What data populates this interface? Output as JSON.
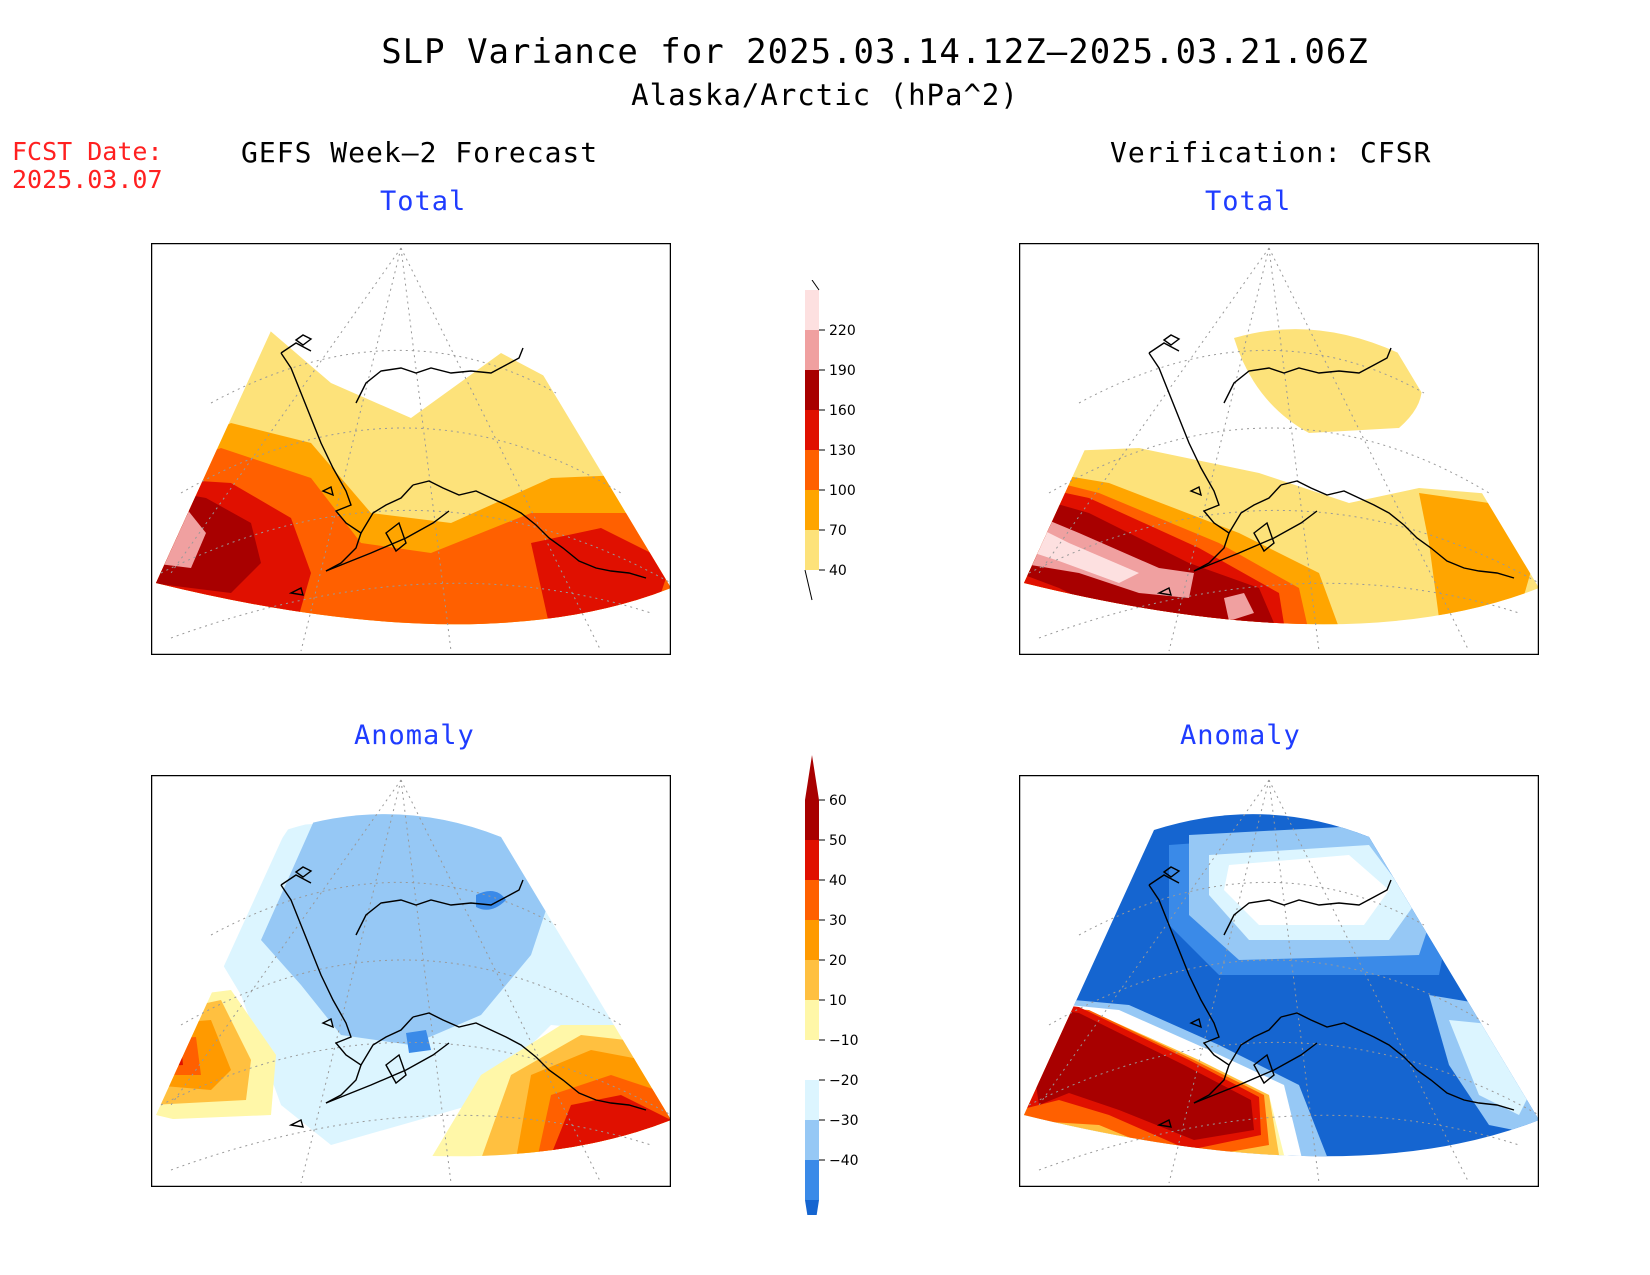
{
  "title": "SLP Variance for 2025.03.14.12Z–2025.03.21.06Z",
  "subtitle": "Alaska/Arctic (hPa^2)",
  "fcst_date_label": "FCST Date:",
  "fcst_date_value": "2025.03.07",
  "left_header": "GEFS Week–2 Forecast",
  "right_header": "Verification: CFSR",
  "panels": {
    "forecast_total_title": "Total",
    "verification_total_title": "Total",
    "forecast_anomaly_title": "Anomaly",
    "verification_anomaly_title": "Anomaly"
  },
  "colors": {
    "total": [
      "#fde27a",
      "#ffa500",
      "#ff6000",
      "#e01000",
      "#a80000",
      "#f0a0a0",
      "#fde0e0"
    ],
    "anomaly_neg": [
      "#1565d0",
      "#3a8ae8",
      "#96c8f5",
      "#dcf5ff"
    ],
    "anomaly_pos": [
      "#fff7a8",
      "#ffc040",
      "#ff9a00",
      "#ff6000",
      "#e01000",
      "#a80000"
    ]
  },
  "total_colorbar": {
    "labels": [
      "40",
      "70",
      "100",
      "130",
      "160",
      "190",
      "220"
    ]
  },
  "anomaly_colorbar": {
    "labels": [
      "−40",
      "−30",
      "−20",
      "−10",
      "10",
      "20",
      "30",
      "40",
      "50",
      "60"
    ]
  }
}
